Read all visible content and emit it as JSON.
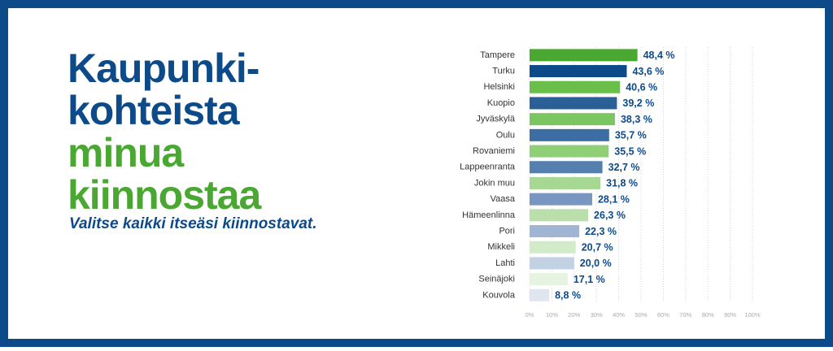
{
  "chart_data": {
    "type": "bar",
    "orientation": "horizontal",
    "title_lines": [
      {
        "text": "Kaupunki-",
        "color": "#0d4a8a"
      },
      {
        "text": "kohteista",
        "color": "#0d4a8a"
      },
      {
        "text": "minua",
        "color": "#4aa832"
      },
      {
        "text": "kiinnostaa",
        "color": "#4aa832"
      }
    ],
    "subtitle": "Valitse kaikki itseäsi kiinnostavat.",
    "categories": [
      "Tampere",
      "Turku",
      "Helsinki",
      "Kuopio",
      "Jyväskylä",
      "Oulu",
      "Rovaniemi",
      "Lappeenranta",
      "Jokin muu",
      "Vaasa",
      "Hämeenlinna",
      "Pori",
      "Mikkeli",
      "Lahti",
      "Seinäjoki",
      "Kouvola"
    ],
    "values": [
      48.4,
      43.6,
      40.6,
      39.2,
      38.3,
      35.7,
      35.5,
      32.7,
      31.8,
      28.1,
      26.3,
      22.3,
      20.7,
      20.0,
      17.1,
      8.8
    ],
    "value_labels": [
      "48,4 %",
      "43,6 %",
      "40,6 %",
      "39,2 %",
      "38,3 %",
      "35,7 %",
      "35,5 %",
      "32,7 %",
      "31,8 %",
      "28,1 %",
      "26,3 %",
      "22,3 %",
      "20,7 %",
      "20,0 %",
      "17,1 %",
      "8,8 %"
    ],
    "colors": [
      "#4aa832",
      "#0d4a8a",
      "#6abf4b",
      "#2a5f97",
      "#7cc662",
      "#3d6ea3",
      "#8fcf76",
      "#5580ae",
      "#a6d893",
      "#7896bf",
      "#badfaa",
      "#9fb5d3",
      "#d2ebc8",
      "#c2d1e3",
      "#e6f3e0",
      "#dfe6ef"
    ],
    "xlim": [
      0,
      100
    ],
    "xticks": [
      {
        "value": 0,
        "label": "0%"
      },
      {
        "value": 10,
        "label": "10%"
      },
      {
        "value": 20,
        "label": "20%"
      },
      {
        "value": 30,
        "label": "30%"
      },
      {
        "value": 40,
        "label": "40%"
      },
      {
        "value": 50,
        "label": "50%"
      },
      {
        "value": 60,
        "label": "60%"
      },
      {
        "value": 70,
        "label": "70%"
      },
      {
        "value": 80,
        "label": "80%"
      },
      {
        "value": 90,
        "label": "90%"
      },
      {
        "value": 100,
        "label": "100%"
      }
    ],
    "grid": true
  }
}
